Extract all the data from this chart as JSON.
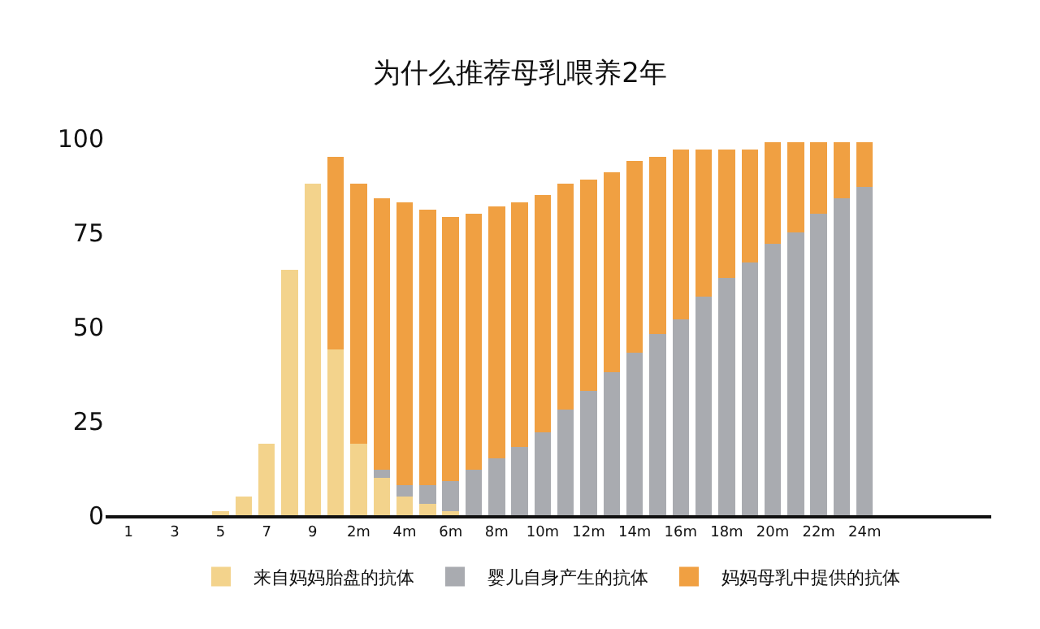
{
  "chart_data": {
    "type": "bar",
    "title": "为什么推荐母乳喂养2年",
    "stacked": true,
    "categories": [
      "1",
      null,
      "3",
      null,
      "5",
      null,
      "7",
      null,
      "9",
      null,
      "2m",
      null,
      "4m",
      null,
      "6m",
      null,
      "8m",
      null,
      "10m",
      null,
      "12m",
      null,
      "14m",
      null,
      "16m",
      null,
      "18m",
      null,
      "20m",
      null,
      "22m",
      null,
      "24m"
    ],
    "series": [
      {
        "name": "来自妈妈胎盘的抗体",
        "color": "#f3d38c",
        "values": [
          null,
          null,
          null,
          null,
          1,
          5,
          19,
          65,
          88,
          44,
          19,
          10,
          5,
          3,
          1,
          null,
          null,
          null,
          null,
          null,
          null,
          null,
          null,
          null,
          null,
          null,
          null,
          null,
          null,
          null,
          null,
          null,
          null
        ]
      },
      {
        "name": "婴儿自身产生的抗体",
        "color": "#a9abb0",
        "values": [
          null,
          null,
          null,
          null,
          null,
          null,
          null,
          null,
          null,
          null,
          null,
          2,
          3,
          5,
          8,
          12,
          15,
          18,
          22,
          28,
          33,
          38,
          43,
          48,
          52,
          58,
          63,
          67,
          72,
          75,
          80,
          84,
          87
        ]
      },
      {
        "name": "妈妈母乳中提供的抗体",
        "color": "#f0a042",
        "values": [
          null,
          null,
          null,
          null,
          null,
          null,
          null,
          null,
          null,
          51,
          69,
          72,
          75,
          73,
          70,
          68,
          67,
          65,
          63,
          60,
          56,
          53,
          51,
          47,
          45,
          39,
          34,
          30,
          27,
          24,
          19,
          15,
          12
        ]
      }
    ],
    "ylim": [
      0,
      100
    ],
    "yticks": [
      0,
      25,
      50,
      75,
      100
    ],
    "legend": "bottom"
  }
}
